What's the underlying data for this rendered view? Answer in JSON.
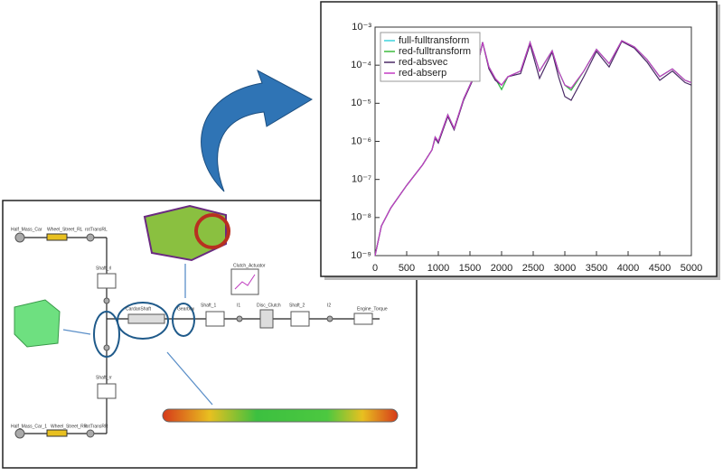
{
  "chart_data": {
    "type": "line",
    "x": [
      0,
      100,
      250,
      500,
      750,
      900,
      950,
      1000,
      1150,
      1250,
      1400,
      1600,
      1700,
      1800,
      1900,
      2000,
      2100,
      2300,
      2450,
      2600,
      2800,
      2900,
      3000,
      3100,
      3300,
      3500,
      3700,
      3900,
      4100,
      4300,
      4500,
      4700,
      4900,
      5000
    ],
    "series": [
      {
        "name": "full-fulltransform",
        "color": "#3fd3dc",
        "values": [
          1e-09,
          6e-09,
          1.8e-08,
          7e-08,
          2.4e-07,
          6e-07,
          1.3e-06,
          1e-06,
          5e-06,
          2.2e-06,
          1.3e-05,
          7e-05,
          0.0004,
          9e-05,
          4.5e-05,
          2.3e-05,
          5e-05,
          7e-05,
          0.0004,
          7e-05,
          0.00024,
          7e-05,
          3e-05,
          2.2e-05,
          7e-05,
          0.00026,
          0.00011,
          0.00044,
          0.0003,
          0.00014,
          5e-05,
          8e-05,
          4e-05,
          3.5e-05
        ]
      },
      {
        "name": "red-fulltransform",
        "color": "#3cba3c",
        "values": [
          1e-09,
          6e-09,
          1.8e-08,
          7e-08,
          2.4e-07,
          6e-07,
          1.3e-06,
          1e-06,
          5e-06,
          2.2e-06,
          1.3e-05,
          7e-05,
          0.0004,
          9e-05,
          4.5e-05,
          2.3e-05,
          5e-05,
          7e-05,
          0.0004,
          7e-05,
          0.00024,
          7e-05,
          3e-05,
          2.2e-05,
          7e-05,
          0.00026,
          0.00011,
          0.00044,
          0.0003,
          0.00014,
          5e-05,
          8e-05,
          4e-05,
          3.5e-05
        ]
      },
      {
        "name": "red-absvec",
        "color": "#4a2a66",
        "values": [
          1e-09,
          6e-09,
          1.8e-08,
          7e-08,
          2.4e-07,
          6e-07,
          1.2e-06,
          9e-07,
          4.5e-06,
          2e-06,
          1.2e-05,
          6.5e-05,
          0.0004,
          8e-05,
          4e-05,
          3e-05,
          5e-05,
          6e-05,
          0.00035,
          4.5e-05,
          0.00022,
          5e-05,
          1.5e-05,
          1.2e-05,
          5e-05,
          0.00023,
          9e-05,
          0.00042,
          0.00028,
          0.00012,
          4e-05,
          7e-05,
          3.5e-05,
          3e-05
        ]
      },
      {
        "name": "red-abserp",
        "color": "#c43cc4",
        "values": [
          1e-09,
          6e-09,
          1.8e-08,
          7e-08,
          2.4e-07,
          6e-07,
          1.3e-06,
          1e-06,
          5e-06,
          2.2e-06,
          1.3e-05,
          7e-05,
          0.0004,
          9e-05,
          4.5e-05,
          3e-05,
          5e-05,
          7e-05,
          0.0004,
          7e-05,
          0.00024,
          7e-05,
          3e-05,
          2.5e-05,
          7e-05,
          0.00026,
          0.00011,
          0.00044,
          0.0003,
          0.00014,
          5e-05,
          8e-05,
          4e-05,
          3.5e-05
        ]
      }
    ],
    "xlim": [
      0,
      5000
    ],
    "xticks": [
      0,
      500,
      1000,
      1500,
      2000,
      2500,
      3000,
      3500,
      4000,
      4500,
      5000
    ],
    "ylim": [
      1e-09,
      0.001
    ],
    "yscale": "log",
    "yticks": [
      {
        "value": 1e-09,
        "label": "10⁻⁹"
      },
      {
        "value": 1e-08,
        "label": "10⁻⁸"
      },
      {
        "value": 1e-07,
        "label": "10⁻⁷"
      },
      {
        "value": 1e-06,
        "label": "10⁻⁶"
      },
      {
        "value": 1e-05,
        "label": "10⁻⁵"
      },
      {
        "value": 0.0001,
        "label": "10⁻⁴"
      },
      {
        "value": 0.001,
        "label": "10⁻³"
      }
    ],
    "legend": "upper left"
  },
  "diagram": {
    "labels": [
      "Half_Mass_Car",
      "Wheel_Street_RL",
      "rotTransRL",
      "Shaft_rl",
      "Clutch_Actuator",
      "CardanShaft",
      "Gearbox",
      "Shaft_1",
      "I1",
      "Disc_Clutch",
      "Shaft_2",
      "I2",
      "Engine_Torque",
      "Shaft_rr",
      "Half_Mass_Car_1",
      "Wheel_Street_RR",
      "rotTransRR"
    ]
  }
}
